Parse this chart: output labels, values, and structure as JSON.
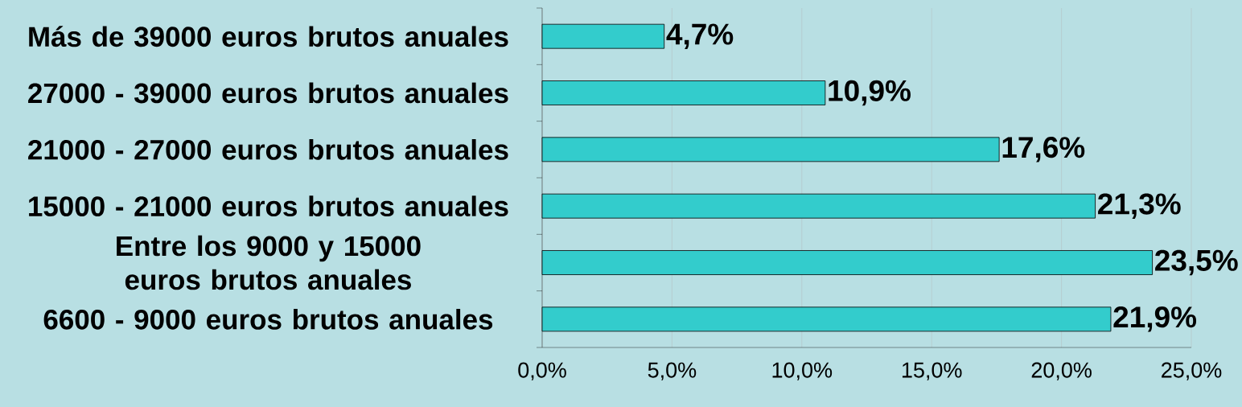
{
  "chart_data": {
    "type": "bar",
    "orientation": "horizontal",
    "categories": [
      "Más de 39000 euros brutos anuales",
      "27000 - 39000 euros brutos anuales",
      "21000 - 27000 euros brutos anuales",
      "15000 - 21000 euros brutos anuales",
      "Entre los 9000 y 15000 euros brutos anuales",
      "6600 - 9000 euros brutos anuales"
    ],
    "values": [
      4.7,
      10.9,
      17.6,
      21.3,
      23.5,
      21.9
    ],
    "value_labels": [
      "4,7%",
      "10,9%",
      "17,6%",
      "21,3%",
      "23,5%",
      "21,9%"
    ],
    "color": "#33cccc",
    "xlim": [
      0,
      25
    ],
    "xticks": [
      {
        "value": 0,
        "label": "0,0%"
      },
      {
        "value": 5,
        "label": "5,0%"
      },
      {
        "value": 10,
        "label": "10,0%"
      },
      {
        "value": 15,
        "label": "15,0%"
      },
      {
        "value": 20,
        "label": "20,0%"
      },
      {
        "value": 25,
        "label": "25,0%"
      }
    ],
    "grid": "x"
  }
}
